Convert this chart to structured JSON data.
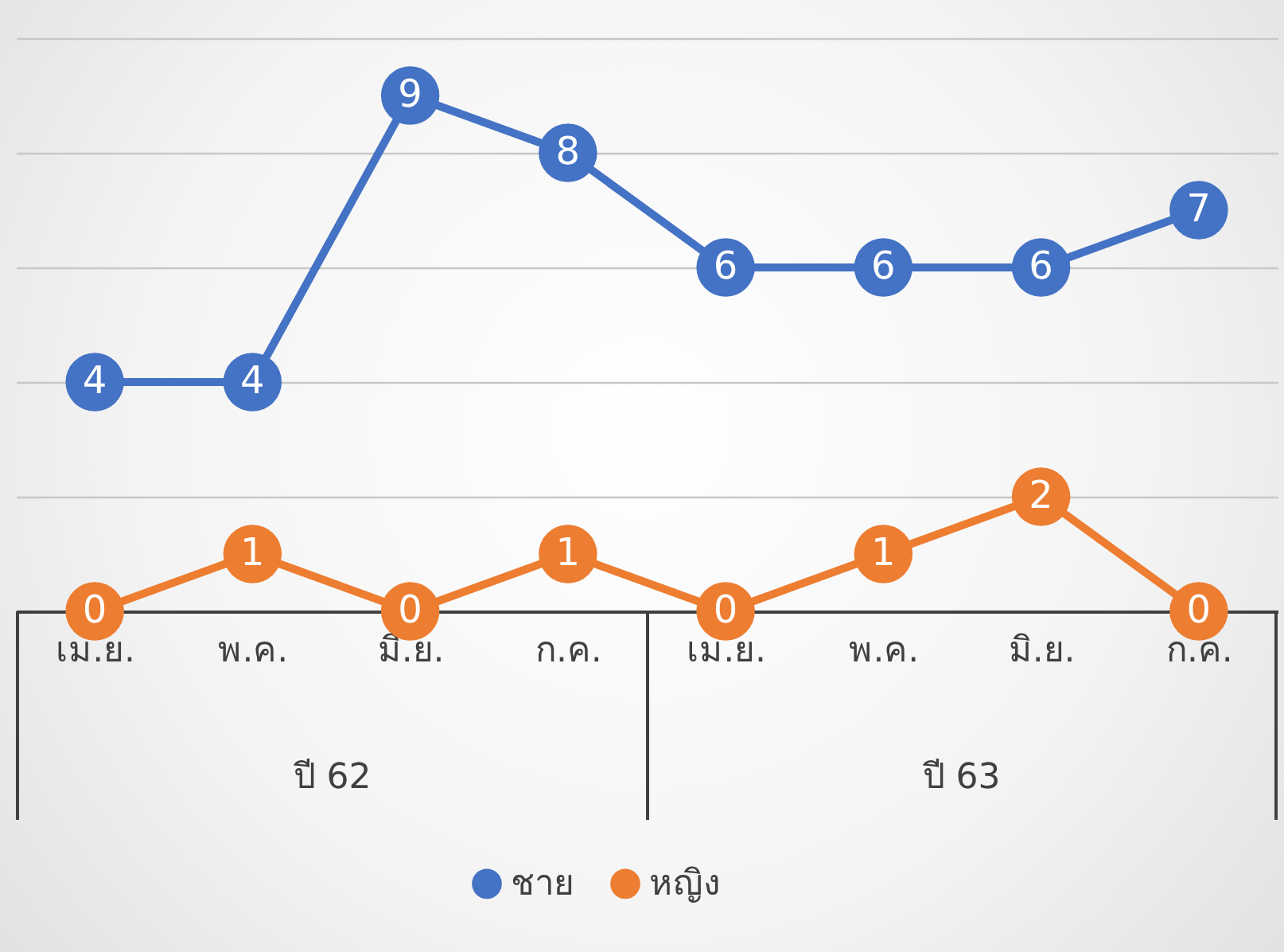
{
  "chart_data": {
    "type": "line",
    "categories": [
      "เม.ย.",
      "พ.ค.",
      "มิ.ย.",
      "ก.ค.",
      "เม.ย.",
      "พ.ค.",
      "มิ.ย.",
      "ก.ค."
    ],
    "series": [
      {
        "name": "ชาย",
        "color": "#4472c4",
        "values": [
          4,
          4,
          9,
          8,
          6,
          6,
          6,
          7
        ]
      },
      {
        "name": "หญิง",
        "color": "#ed7d31",
        "values": [
          0,
          1,
          0,
          1,
          0,
          1,
          2,
          0
        ]
      }
    ],
    "annotations": [
      "ปี 62",
      "ปี 63"
    ],
    "ylim": [
      0,
      10
    ],
    "yticks": [
      {
        "value": 0,
        "label": null
      },
      {
        "value": 2,
        "label": null
      },
      {
        "value": 4,
        "label": null
      },
      {
        "value": 6,
        "label": null
      },
      {
        "value": 8,
        "label": null
      },
      {
        "value": 10,
        "label": null
      }
    ],
    "tick_labels": "x",
    "grid": "y",
    "data_labels": true,
    "legend": "bottom",
    "marker": "circle",
    "line_style": "solid"
  }
}
